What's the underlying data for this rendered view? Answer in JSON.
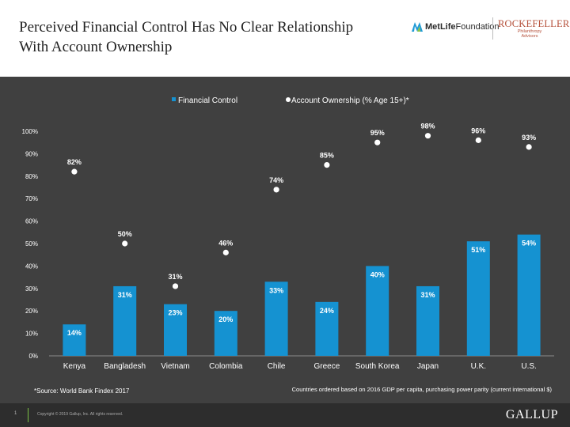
{
  "header": {
    "title_line1": "Perceived Financial Control Has No Clear Relationship",
    "title_line2": "With Account Ownership",
    "logos": {
      "metlife_name": "MetLife",
      "metlife_suffix": "Foundation",
      "rockefeller_name": "ROCKEFELLER",
      "rockefeller_sub1": "Philanthropy",
      "rockefeller_sub2": "Advisors"
    }
  },
  "chart_data": {
    "type": "bar",
    "categories": [
      "Kenya",
      "Bangladesh",
      "Vietnam",
      "Colombia",
      "Chile",
      "Greece",
      "South Korea",
      "Japan",
      "U.K.",
      "U.S."
    ],
    "series": [
      {
        "name": "Financial Control",
        "type": "bar",
        "color": "#1592d1",
        "values": [
          14,
          31,
          23,
          20,
          33,
          24,
          40,
          31,
          51,
          54
        ],
        "labels": [
          "14%",
          "31%",
          "23%",
          "20%",
          "33%",
          "24%",
          "40%",
          "31%",
          "51%",
          "54%"
        ]
      },
      {
        "name": "Account Ownership (% Age 15+)*",
        "type": "scatter",
        "color": "#ffffff",
        "values": [
          82,
          50,
          31,
          46,
          74,
          85,
          95,
          98,
          96,
          93
        ],
        "labels": [
          "82%",
          "50%",
          "31%",
          "46%",
          "74%",
          "85%",
          "95%",
          "98%",
          "96%",
          "93%"
        ]
      }
    ],
    "ylim": [
      0,
      100
    ],
    "yticks": [
      0,
      10,
      20,
      30,
      40,
      50,
      60,
      70,
      80,
      90,
      100
    ],
    "ytick_labels": [
      "0%",
      "10%",
      "20%",
      "30%",
      "40%",
      "50%",
      "60%",
      "70%",
      "80%",
      "90%",
      "100%"
    ],
    "grid": false,
    "legend_position": "top",
    "source_note": "*Source: World Bank Findex 2017",
    "order_note": "Countries ordered based on 2016 GDP per capita, purchasing power parity (current international $)",
    "colors": {
      "background": "#404040",
      "text": "#ffffff",
      "axis": "#8c8c8c"
    }
  },
  "footer": {
    "page_number": "1",
    "copyright": "Copyright © 2019 Gallup, Inc. All rights reserved.",
    "brand": "GALLUP",
    "accent_color": "#7bbf44"
  }
}
